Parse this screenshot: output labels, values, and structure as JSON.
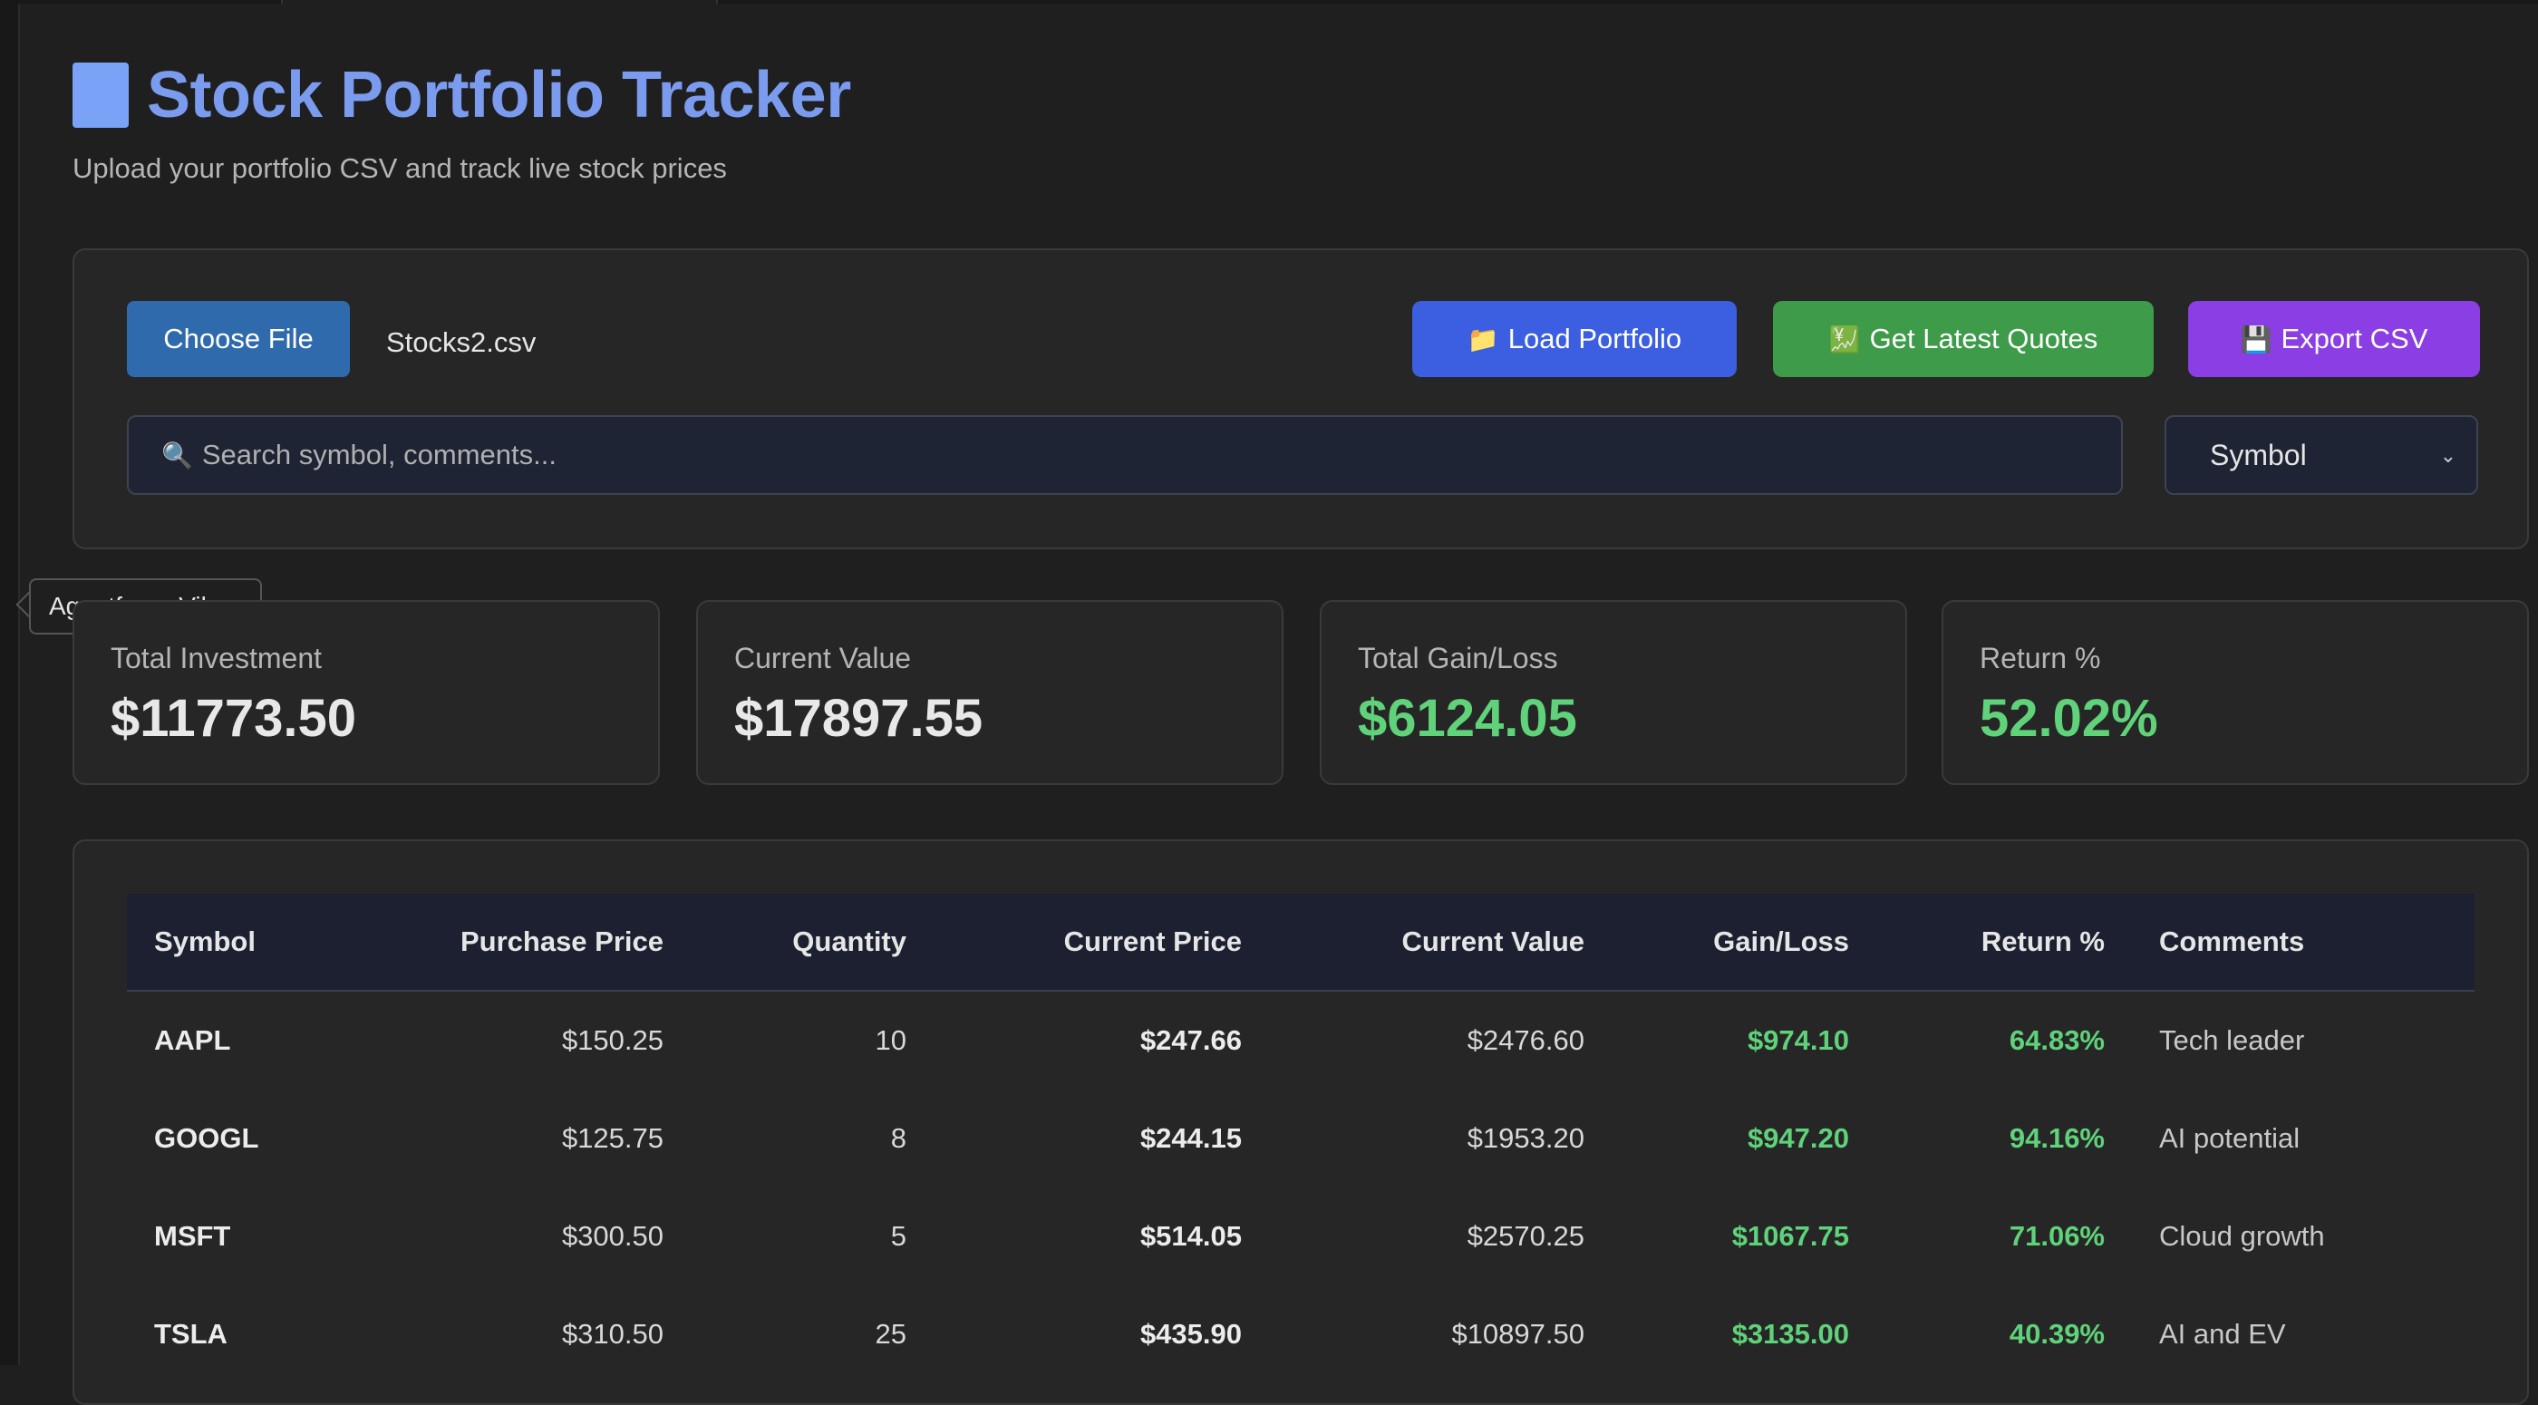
{
  "header": {
    "title": "Stock Portfolio Tracker",
    "subtitle": "Upload your portfolio CSV and track live stock prices"
  },
  "controls": {
    "choose_file_label": "Choose File",
    "file_name": "Stocks2.csv",
    "load_label": "Load Portfolio",
    "quotes_label": "Get Latest Quotes",
    "export_label": "Export CSV",
    "search_placeholder": "Search symbol, comments...",
    "sort_selected": "Symbol",
    "load_icon": "folder-icon",
    "quotes_icon": "money-icon",
    "export_icon": "floppy-disk-icon",
    "search_icon": "magnifier-icon"
  },
  "tooltip": {
    "text": "Agentforce Vibes"
  },
  "stats": {
    "total_investment": {
      "label": "Total Investment",
      "value": "$11773.50"
    },
    "current_value": {
      "label": "Current Value",
      "value": "$17897.55"
    },
    "total_gain_loss": {
      "label": "Total Gain/Loss",
      "value": "$6124.05"
    },
    "return_pct": {
      "label": "Return %",
      "value": "52.02%"
    }
  },
  "table": {
    "headers": [
      "Symbol",
      "Purchase Price",
      "Quantity",
      "Current Price",
      "Current Value",
      "Gain/Loss",
      "Return %",
      "Comments"
    ],
    "rows": [
      [
        "AAPL",
        "$150.25",
        "10",
        "$247.66",
        "$2476.60",
        "$974.10",
        "64.83%",
        "Tech leader"
      ],
      [
        "GOOGL",
        "$125.75",
        "8",
        "$244.15",
        "$1953.20",
        "$947.20",
        "94.16%",
        "AI potential"
      ],
      [
        "MSFT",
        "$300.50",
        "5",
        "$514.05",
        "$2570.25",
        "$1067.75",
        "71.06%",
        "Cloud growth"
      ],
      [
        "TSLA",
        "$310.50",
        "25",
        "$435.90",
        "$10897.50",
        "$3135.00",
        "40.39%",
        "AI and EV"
      ]
    ]
  },
  "colors": {
    "accent_title": "#7b9bef",
    "positive": "#5fd27a",
    "load_button": "#3b5fe0",
    "quotes_button": "#3e9b4a",
    "export_button": "#8a3ee3",
    "choose_button": "#2f6aad"
  }
}
